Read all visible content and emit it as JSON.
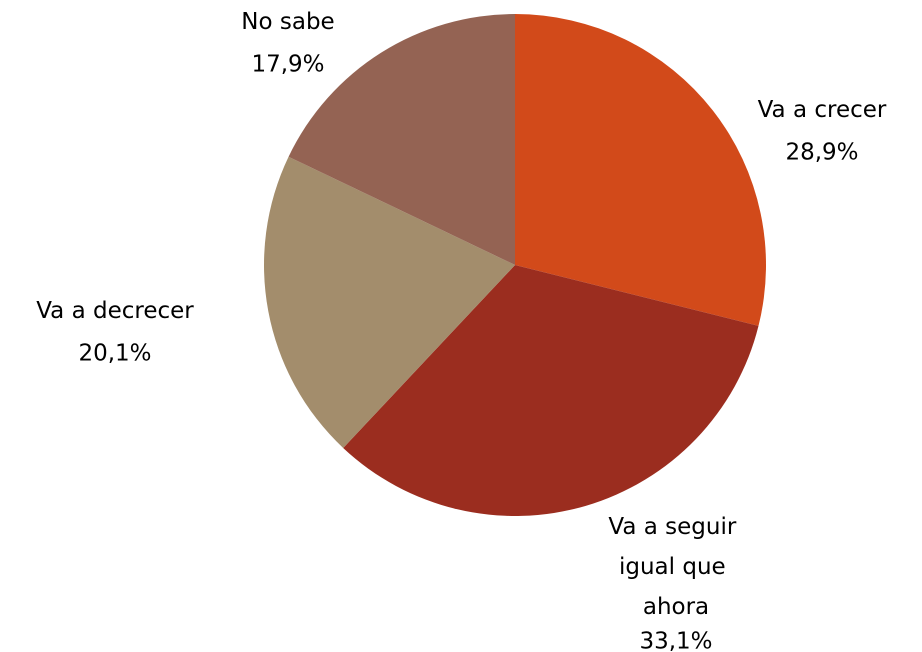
{
  "chart_data": {
    "type": "pie",
    "categories": [
      "Va a crecer",
      "Va a seguir igual que ahora",
      "Va a decrecer",
      "No sabe"
    ],
    "values": [
      28.9,
      33.1,
      20.1,
      17.9
    ],
    "value_labels": [
      "28,9%",
      "33,1%",
      "20,1%",
      "17,9%"
    ],
    "colors": [
      "#d24a1a",
      "#9b2d1f",
      "#a38d6c",
      "#946353"
    ]
  }
}
